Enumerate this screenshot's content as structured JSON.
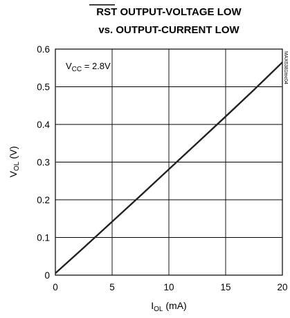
{
  "chart_data": {
    "type": "line",
    "title_line1_overbar": "RST",
    "title_line1_rest": " OUTPUT-VOLTAGE LOW",
    "title_line2": "vs. OUTPUT-CURRENT LOW",
    "xlabel_main": "I",
    "xlabel_sub": "OL",
    "xlabel_unit": " (mA)",
    "ylabel_main": "V",
    "ylabel_sub": "OL",
    "ylabel_unit": " (V)",
    "annotation_main": "V",
    "annotation_sub": "CC",
    "annotation_rest": " = 2.8V",
    "figure_code": "MAX6381toc04",
    "xlim": [
      0,
      20
    ],
    "ylim": [
      0,
      0.6
    ],
    "xticks": [
      "0",
      "5",
      "10",
      "15",
      "20"
    ],
    "yticks": [
      "0",
      "0.1",
      "0.2",
      "0.3",
      "0.4",
      "0.5",
      "0.6"
    ],
    "grid": true,
    "series": [
      {
        "x": [
          0,
          2.5,
          5,
          7.5,
          10,
          12.5,
          15,
          17.5,
          20
        ],
        "y": [
          0.005,
          0.073,
          0.142,
          0.211,
          0.281,
          0.351,
          0.421,
          0.492,
          0.565
        ]
      }
    ]
  }
}
